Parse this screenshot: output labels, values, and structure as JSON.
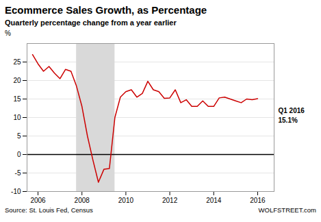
{
  "chart_data": {
    "type": "line",
    "title": "Ecommerce Sales Growth, as Percentage",
    "subtitle": "Quarterly percentage change from a year earlier",
    "ylabel": "%",
    "sources": [
      "Source: St. Louis Fed, Census",
      "WOLFSTREET.com"
    ],
    "annotations": [
      "Q1 2016",
      "15.1%"
    ],
    "recession": {
      "start": 2007.75,
      "end": 2009.5,
      "color": "#d9d9d9"
    },
    "zero_line": {
      "y": 0,
      "color": "#000000"
    },
    "color": "#cc0000",
    "grid": true,
    "xlim": [
      2005.5,
      2016.75
    ],
    "xticks": [
      2006,
      2008,
      2010,
      2012,
      2014,
      2016
    ],
    "ylim": [
      -10,
      30
    ],
    "yticks": [
      -10,
      -5,
      0,
      5,
      10,
      15,
      20,
      25
    ],
    "x": [
      2005.75,
      2006.0,
      2006.25,
      2006.5,
      2006.75,
      2007.0,
      2007.25,
      2007.5,
      2007.75,
      2008.0,
      2008.25,
      2008.5,
      2008.75,
      2009.0,
      2009.25,
      2009.5,
      2009.75,
      2010.0,
      2010.25,
      2010.5,
      2010.75,
      2011.0,
      2011.25,
      2011.5,
      2011.75,
      2012.0,
      2012.25,
      2012.5,
      2012.75,
      2013.0,
      2013.25,
      2013.5,
      2013.75,
      2014.0,
      2014.25,
      2014.5,
      2014.75,
      2015.0,
      2015.25,
      2015.5,
      2015.75,
      2016.0
    ],
    "values": [
      27.0,
      24.5,
      22.5,
      23.8,
      22.0,
      20.5,
      23.0,
      22.5,
      18.5,
      13.0,
      5.0,
      -1.5,
      -7.5,
      -4.0,
      -3.8,
      10.0,
      15.5,
      17.0,
      17.5,
      15.5,
      16.5,
      19.8,
      17.5,
      17.0,
      15.2,
      15.3,
      17.5,
      14.0,
      14.8,
      13.0,
      13.0,
      14.5,
      13.0,
      13.0,
      15.3,
      15.5,
      15.0,
      14.5,
      14.0,
      15.0,
      14.8,
      15.1
    ]
  }
}
